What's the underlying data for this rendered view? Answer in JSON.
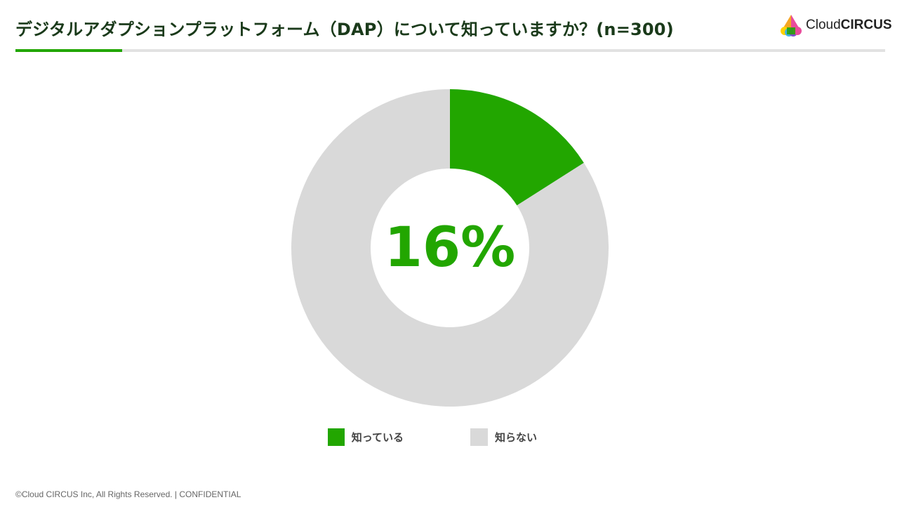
{
  "header": {
    "title": "デジタルアダプションプラットフォーム（DAP）について知っていますか？(n=300)",
    "accent_color": "#22a600",
    "logo": {
      "text_regular": "Cloud",
      "text_bold": "CIRCUS"
    }
  },
  "chart_data": {
    "type": "pie",
    "title": "デジタルアダプションプラットフォーム（DAP）について知っていますか？(n=300)",
    "n": 300,
    "center_label": "16%",
    "categories": [
      "知っている",
      "知らない"
    ],
    "values": [
      16,
      84
    ],
    "colors": [
      "#22a600",
      "#d9d9d9"
    ],
    "legend_position": "bottom"
  },
  "footer": {
    "text": "©Cloud CIRCUS Inc, All Rights Reserved. | CONFIDENTIAL"
  }
}
